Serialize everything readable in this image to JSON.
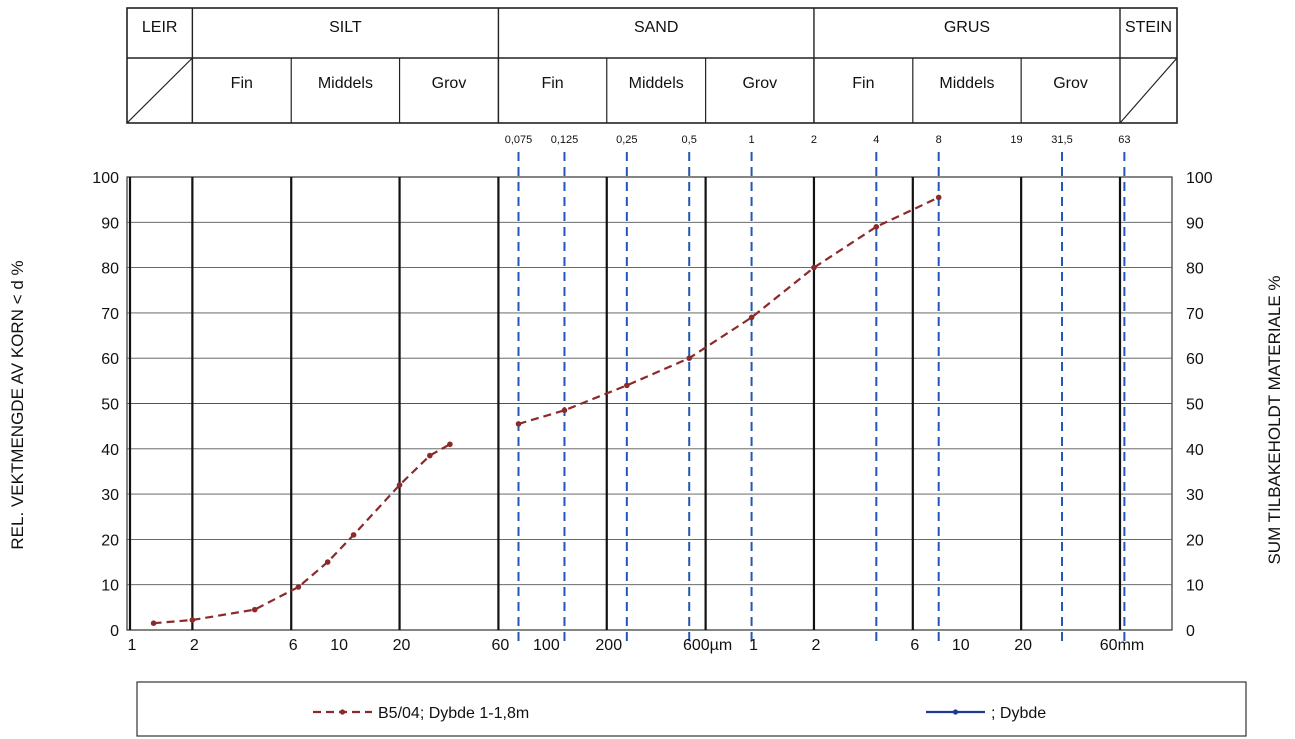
{
  "chart_data": {
    "type": "line",
    "x_scale": "log",
    "x_unit_note": "grain size",
    "left_ylabel": "REL. VEKTMENGDE AV KORN < d %",
    "right_ylabel": "SUM TILBAKEHOLDT MATERIALE %",
    "ylim": [
      0,
      100
    ],
    "left_y_ticks": [
      "0",
      "10",
      "20",
      "30",
      "40",
      "50",
      "60",
      "70",
      "80",
      "90",
      "100"
    ],
    "right_y_ticks": [
      "100",
      "90",
      "80",
      "70",
      "60",
      "50",
      "40",
      "30",
      "20",
      "10",
      "0"
    ],
    "x_tick_labels": [
      {
        "label": "1",
        "mm": 0.001
      },
      {
        "label": "2",
        "mm": 0.002
      },
      {
        "label": "6",
        "mm": 0.006
      },
      {
        "label": "10",
        "mm": 0.01
      },
      {
        "label": "20",
        "mm": 0.02
      },
      {
        "label": "60",
        "mm": 0.06
      },
      {
        "label": "100",
        "mm": 0.1
      },
      {
        "label": "200",
        "mm": 0.2
      },
      {
        "label": "600µm",
        "mm": 0.6
      },
      {
        "label": "1",
        "mm": 1
      },
      {
        "label": "2",
        "mm": 2
      },
      {
        "label": "6",
        "mm": 6
      },
      {
        "label": "10",
        "mm": 10
      },
      {
        "label": "20",
        "mm": 20
      },
      {
        "label": "60mm",
        "mm": 60
      }
    ],
    "sieve_labels": [
      {
        "label": "0,075",
        "mm": 0.075,
        "dashed": true
      },
      {
        "label": "0,125",
        "mm": 0.125,
        "dashed": true
      },
      {
        "label": "0,25",
        "mm": 0.25,
        "dashed": true
      },
      {
        "label": "0,5",
        "mm": 0.5,
        "dashed": true
      },
      {
        "label": "1",
        "mm": 1,
        "dashed": true
      },
      {
        "label": "2",
        "mm": 2,
        "dashed": false
      },
      {
        "label": "4",
        "mm": 4,
        "dashed": true
      },
      {
        "label": "8",
        "mm": 8,
        "dashed": true
      },
      {
        "label": "19",
        "mm": 19,
        "dashed": false
      },
      {
        "label": "31,5",
        "mm": 31.5,
        "dashed": true
      },
      {
        "label": "63",
        "mm": 63,
        "dashed": true
      }
    ],
    "solid_gridlines_mm": [
      0.001,
      0.002,
      0.006,
      0.02,
      0.06,
      0.2,
      0.6,
      2,
      6,
      20,
      60
    ],
    "header": {
      "main": [
        {
          "label": "LEIR",
          "from_mm": 0.0006,
          "to_mm": 0.002
        },
        {
          "label": "SILT",
          "from_mm": 0.002,
          "to_mm": 0.06
        },
        {
          "label": "SAND",
          "from_mm": 0.06,
          "to_mm": 2
        },
        {
          "label": "GRUS",
          "from_mm": 2,
          "to_mm": 60
        },
        {
          "label": "STEIN",
          "from_mm": 60,
          "to_mm": 80
        }
      ],
      "sub": [
        {
          "label": "Fin",
          "from_mm": 0.002,
          "to_mm": 0.006
        },
        {
          "label": "Middels",
          "from_mm": 0.006,
          "to_mm": 0.02
        },
        {
          "label": "Grov",
          "from_mm": 0.02,
          "to_mm": 0.06
        },
        {
          "label": "Fin",
          "from_mm": 0.06,
          "to_mm": 0.2
        },
        {
          "label": "Middels",
          "from_mm": 0.2,
          "to_mm": 0.6
        },
        {
          "label": "Grov",
          "from_mm": 0.6,
          "to_mm": 2
        },
        {
          "label": "Fin",
          "from_mm": 2,
          "to_mm": 6
        },
        {
          "label": "Middels",
          "from_mm": 6,
          "to_mm": 20
        },
        {
          "label": "Grov",
          "from_mm": 20,
          "to_mm": 60
        }
      ]
    },
    "series": [
      {
        "name": "B5/04; Dybde 1-1,8m",
        "color": "#8b2a2a",
        "dashed": true,
        "segments": [
          [
            {
              "x": 0.0013,
              "y": 1.5
            },
            {
              "x": 0.002,
              "y": 2.2
            },
            {
              "x": 0.004,
              "y": 4.5
            },
            {
              "x": 0.0065,
              "y": 9.5
            },
            {
              "x": 0.009,
              "y": 15
            },
            {
              "x": 0.012,
              "y": 21
            },
            {
              "x": 0.02,
              "y": 32
            },
            {
              "x": 0.028,
              "y": 38.5
            },
            {
              "x": 0.035,
              "y": 41
            }
          ],
          [
            {
              "x": 0.075,
              "y": 45.5
            },
            {
              "x": 0.125,
              "y": 48.5
            },
            {
              "x": 0.25,
              "y": 54
            },
            {
              "x": 0.5,
              "y": 60
            },
            {
              "x": 1,
              "y": 69
            },
            {
              "x": 2,
              "y": 80
            },
            {
              "x": 4,
              "y": 89
            },
            {
              "x": 8,
              "y": 95.5
            }
          ]
        ]
      },
      {
        "name": "; Dybde",
        "color": "#1f3a8f",
        "dashed": false,
        "segments": []
      }
    ]
  }
}
